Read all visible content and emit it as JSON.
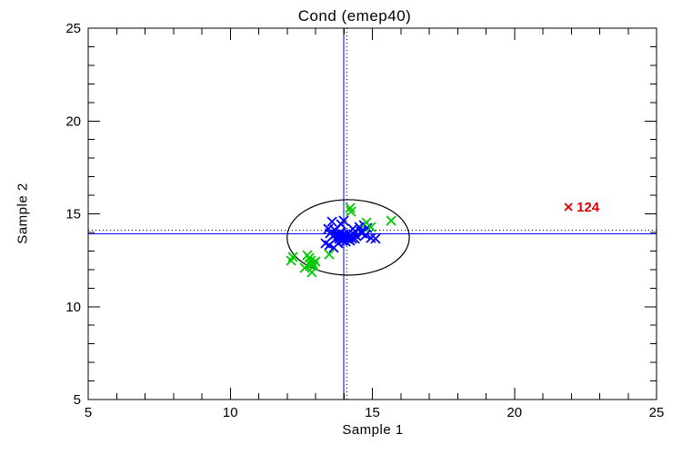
{
  "chart_data": {
    "type": "scatter",
    "title": "Cond (emep40)",
    "xlabel": "Sample 1",
    "ylabel": "Sample 2",
    "xlim": [
      5,
      25
    ],
    "ylim": [
      5,
      25
    ],
    "x_ticks": [
      5,
      10,
      15,
      20,
      25
    ],
    "y_ticks": [
      5,
      10,
      15,
      20,
      25
    ],
    "minor_tick_interval": 1,
    "grid": false,
    "background_color": "#ffffff",
    "axis_color": "#000000",
    "series": [
      {
        "name": "sample-points-blue",
        "color": "#0000FF",
        "marker": "x",
        "marker_size": 4.5,
        "stroke_width": 1.8,
        "points": [
          [
            13.58,
            14.58
          ],
          [
            13.99,
            14.63
          ],
          [
            13.45,
            14.19
          ],
          [
            13.67,
            14.14
          ],
          [
            13.9,
            14.44
          ],
          [
            13.51,
            13.95
          ],
          [
            13.61,
            13.8
          ],
          [
            13.7,
            13.9
          ],
          [
            13.74,
            13.7
          ],
          [
            13.8,
            13.85
          ],
          [
            13.83,
            13.66
          ],
          [
            13.86,
            14.0
          ],
          [
            13.93,
            13.75
          ],
          [
            13.96,
            13.56
          ],
          [
            13.99,
            13.9
          ],
          [
            14.02,
            13.7
          ],
          [
            14.06,
            13.51
          ],
          [
            14.09,
            13.85
          ],
          [
            14.12,
            13.66
          ],
          [
            14.15,
            13.95
          ],
          [
            14.18,
            13.75
          ],
          [
            14.21,
            13.56
          ],
          [
            14.25,
            13.85
          ],
          [
            14.28,
            13.66
          ],
          [
            14.31,
            14.19
          ],
          [
            14.34,
            13.9
          ],
          [
            14.38,
            13.66
          ],
          [
            14.44,
            13.8
          ],
          [
            14.54,
            14.29
          ],
          [
            14.6,
            14.05
          ],
          [
            14.7,
            14.39
          ],
          [
            14.82,
            14.24
          ],
          [
            14.63,
            13.95
          ],
          [
            14.76,
            13.85
          ],
          [
            14.95,
            13.7
          ],
          [
            15.11,
            13.66
          ],
          [
            13.35,
            13.41
          ],
          [
            13.48,
            13.31
          ],
          [
            13.64,
            13.17
          ],
          [
            13.8,
            13.41
          ]
        ]
      },
      {
        "name": "sample-points-green",
        "color": "#00CC00",
        "marker": "x",
        "marker_size": 4.5,
        "stroke_width": 1.8,
        "points": [
          [
            14.22,
            15.32
          ],
          [
            14.25,
            15.12
          ],
          [
            14.79,
            14.53
          ],
          [
            14.95,
            14.29
          ],
          [
            15.66,
            14.63
          ],
          [
            13.48,
            12.82
          ],
          [
            12.2,
            12.68
          ],
          [
            12.14,
            12.48
          ],
          [
            12.71,
            12.77
          ],
          [
            12.78,
            12.63
          ],
          [
            12.84,
            12.48
          ],
          [
            12.9,
            12.33
          ],
          [
            12.81,
            12.29
          ],
          [
            12.94,
            12.19
          ],
          [
            13.0,
            12.43
          ],
          [
            12.62,
            12.09
          ],
          [
            12.87,
            11.85
          ]
        ]
      },
      {
        "name": "flagged-outlier",
        "color": "#DD0000",
        "marker": "x",
        "marker_size": 3.5,
        "stroke_width": 1.8,
        "points": [
          [
            21.9,
            15.37
          ]
        ],
        "labels": [
          "124"
        ],
        "label_bold": true,
        "label_font_size": 15
      }
    ],
    "reference_lines": [
      {
        "name": "mean-line-vertical",
        "orientation": "vertical",
        "value": 13.99,
        "style": "solid",
        "color": "#0000FF"
      },
      {
        "name": "median-line-vertical",
        "orientation": "vertical",
        "value": 14.11,
        "style": "dotted",
        "color": "#000000"
      },
      {
        "name": "mean-line-horizontal",
        "orientation": "horizontal",
        "value": 13.92,
        "style": "solid",
        "color": "#0000FF"
      },
      {
        "name": "median-line-horizontal",
        "orientation": "horizontal",
        "value": 14.12,
        "style": "dotted",
        "color": "#000000"
      }
    ],
    "ellipse": {
      "cx": 14.15,
      "cy": 13.73,
      "rx": 2.15,
      "ry": 2.03,
      "color": "#000000"
    }
  }
}
